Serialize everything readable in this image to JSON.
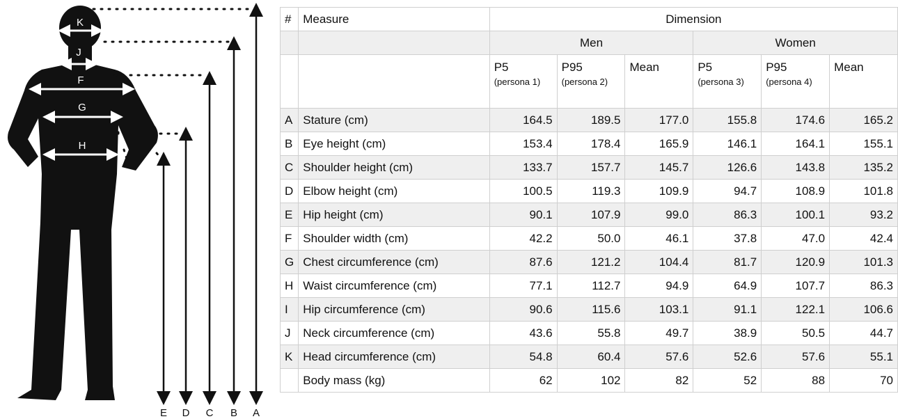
{
  "figure": {
    "labels": [
      "K",
      "J",
      "F",
      "G",
      "H",
      "E",
      "D",
      "C",
      "B",
      "A"
    ]
  },
  "table": {
    "header": {
      "number": "#",
      "measure": "Measure",
      "dimension": "Dimension",
      "groups": [
        "Men",
        "Women"
      ],
      "columns": [
        {
          "stat": "P5",
          "persona": "(persona 1)"
        },
        {
          "stat": "P95",
          "persona": "(persona 2)"
        },
        {
          "stat": "Mean",
          "persona": null
        },
        {
          "stat": "P5",
          "persona": "(persona 3)"
        },
        {
          "stat": "P95",
          "persona": "(persona 4)"
        },
        {
          "stat": "Mean",
          "persona": null
        }
      ]
    },
    "rows": [
      [
        "A",
        "Stature (cm)",
        "164.5",
        "189.5",
        "177.0",
        "155.8",
        "174.6",
        "165.2"
      ],
      [
        "B",
        "Eye height (cm)",
        "153.4",
        "178.4",
        "165.9",
        "146.1",
        "164.1",
        "155.1"
      ],
      [
        "C",
        "Shoulder height (cm)",
        "133.7",
        "157.7",
        "145.7",
        "126.6",
        "143.8",
        "135.2"
      ],
      [
        "D",
        "Elbow height (cm)",
        "100.5",
        "119.3",
        "109.9",
        "94.7",
        "108.9",
        "101.8"
      ],
      [
        "E",
        "Hip height (cm)",
        "90.1",
        "107.9",
        "99.0",
        "86.3",
        "100.1",
        "93.2"
      ],
      [
        "F",
        "Shoulder width (cm)",
        "42.2",
        "50.0",
        "46.1",
        "37.8",
        "47.0",
        "42.4"
      ],
      [
        "G",
        "Chest circumference (cm)",
        "87.6",
        "121.2",
        "104.4",
        "81.7",
        "120.9",
        "101.3"
      ],
      [
        "H",
        "Waist circumference (cm)",
        "77.1",
        "112.7",
        "94.9",
        "64.9",
        "107.7",
        "86.3"
      ],
      [
        "I",
        "Hip circumference (cm)",
        "90.6",
        "115.6",
        "103.1",
        "91.1",
        "122.1",
        "106.6"
      ],
      [
        "J",
        "Neck circumference (cm)",
        "43.6",
        "55.8",
        "49.7",
        "38.9",
        "50.5",
        "44.7"
      ],
      [
        "K",
        "Head circumference (cm)",
        "54.8",
        "60.4",
        "57.6",
        "52.6",
        "57.6",
        "55.1"
      ],
      [
        null,
        "Body mass (kg)",
        "62",
        "102",
        "82",
        "52",
        "88",
        "70"
      ]
    ]
  }
}
